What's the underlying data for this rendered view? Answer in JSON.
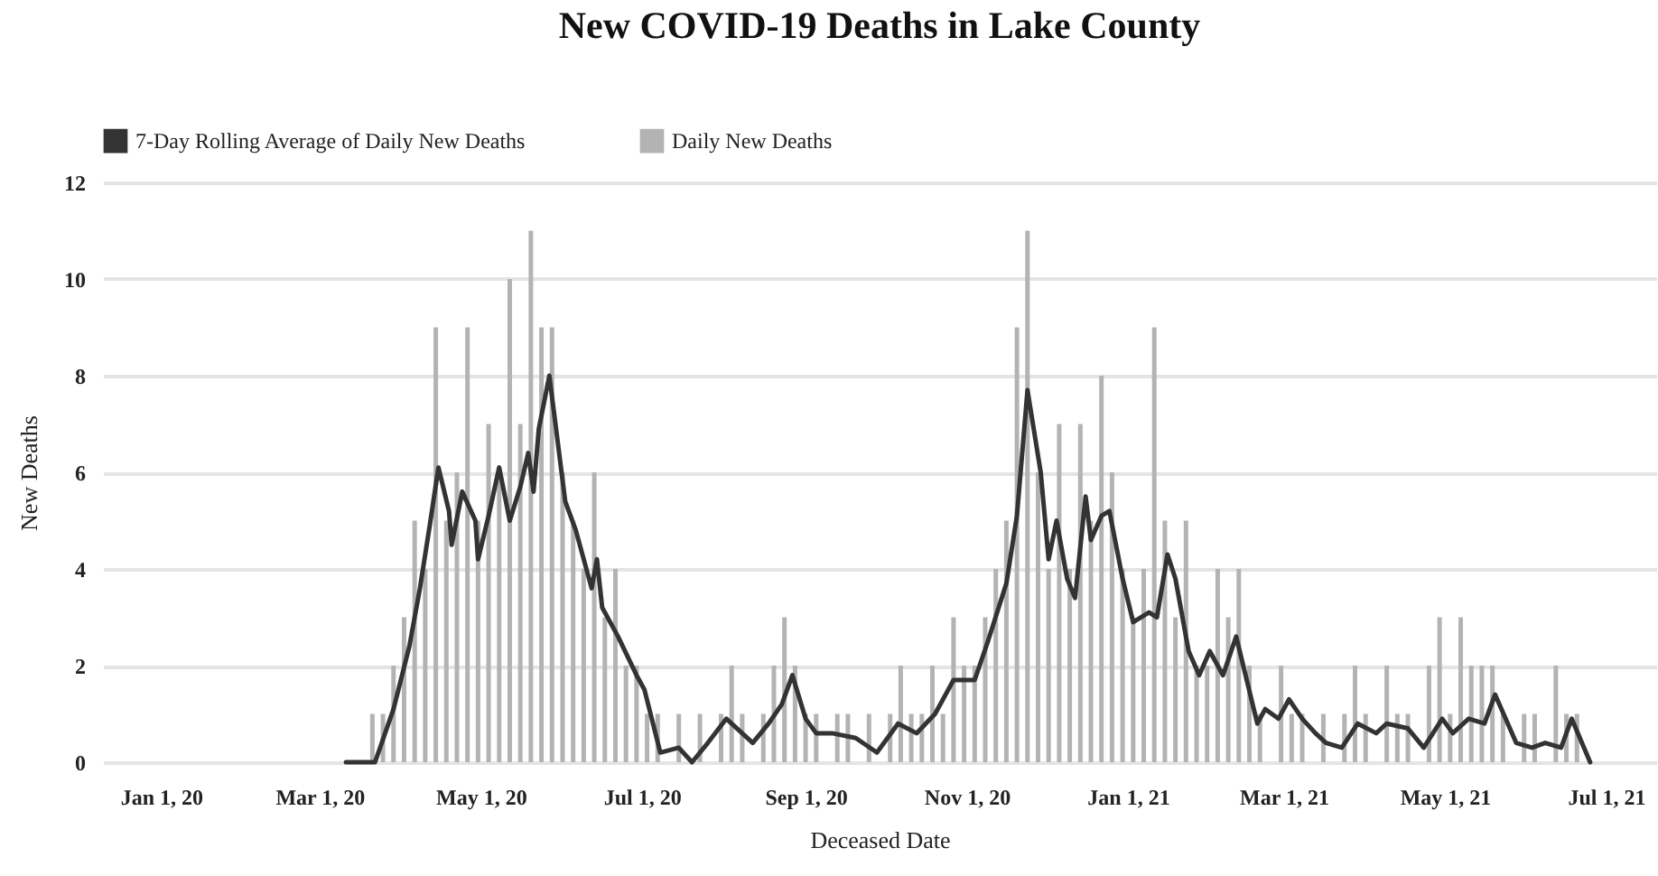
{
  "chart_data": {
    "type": "bar",
    "title": "New COVID-19 Deaths in Lake County",
    "xlabel": "Deceased Date",
    "ylabel": "New Deaths",
    "xlim": [
      "2019-12-10",
      "2021-07-20"
    ],
    "xticks": [
      {
        "value": "2020-01-01",
        "label": "Jan 1, 20"
      },
      {
        "value": "2020-03-01",
        "label": "Mar 1, 20"
      },
      {
        "value": "2020-05-01",
        "label": "May 1, 20"
      },
      {
        "value": "2020-07-01",
        "label": "Jul 1, 20"
      },
      {
        "value": "2020-09-01",
        "label": "Sep 1, 20"
      },
      {
        "value": "2020-11-01",
        "label": "Nov 1, 20"
      },
      {
        "value": "2021-01-01",
        "label": "Jan 1, 21"
      },
      {
        "value": "2021-03-01",
        "label": "Mar 1, 21"
      },
      {
        "value": "2021-05-01",
        "label": "May 1, 21"
      },
      {
        "value": "2021-07-01",
        "label": "Jul 1, 21"
      }
    ],
    "ylim": [
      0,
      12
    ],
    "yticks": [
      0,
      2,
      4,
      6,
      8,
      10,
      12
    ],
    "grid": "y",
    "legend": "top",
    "series": [
      {
        "name": "7-Day Rolling Average of Daily New Deaths",
        "type": "line",
        "color": "#333333",
        "x": [
          "2020-03-11",
          "2020-03-22",
          "2020-03-29",
          "2020-04-04",
          "2020-04-08",
          "2020-04-12",
          "2020-04-15",
          "2020-04-19",
          "2020-04-20",
          "2020-04-24",
          "2020-04-29",
          "2020-04-30",
          "2020-05-04",
          "2020-05-08",
          "2020-05-12",
          "2020-05-16",
          "2020-05-19",
          "2020-05-21",
          "2020-05-23",
          "2020-05-27",
          "2020-06-02",
          "2020-06-06",
          "2020-06-12",
          "2020-06-14",
          "2020-06-16",
          "2020-06-22",
          "2020-06-29",
          "2020-07-02",
          "2020-07-08",
          "2020-07-15",
          "2020-07-20",
          "2020-07-26",
          "2020-08-02",
          "2020-08-06",
          "2020-08-12",
          "2020-08-18",
          "2020-08-23",
          "2020-08-27",
          "2020-09-01",
          "2020-09-05",
          "2020-09-11",
          "2020-09-20",
          "2020-09-28",
          "2020-10-06",
          "2020-10-13",
          "2020-10-20",
          "2020-10-27",
          "2020-11-04",
          "2020-11-09",
          "2020-11-16",
          "2020-11-20",
          "2020-11-24",
          "2020-11-29",
          "2020-12-02",
          "2020-12-05",
          "2020-12-09",
          "2020-12-12",
          "2020-12-16",
          "2020-12-18",
          "2020-12-22",
          "2020-12-25",
          "2020-12-30",
          "2021-01-03",
          "2021-01-09",
          "2021-01-12",
          "2021-01-16",
          "2021-01-19",
          "2021-01-24",
          "2021-01-28",
          "2021-02-01",
          "2021-02-06",
          "2021-02-11",
          "2021-02-15",
          "2021-02-19",
          "2021-02-22",
          "2021-02-27",
          "2021-03-03",
          "2021-03-08",
          "2021-03-13",
          "2021-03-17",
          "2021-03-23",
          "2021-03-29",
          "2021-04-05",
          "2021-04-09",
          "2021-04-17",
          "2021-04-23",
          "2021-04-30",
          "2021-05-04",
          "2021-05-10",
          "2021-05-16",
          "2021-05-20",
          "2021-05-28",
          "2021-06-03",
          "2021-06-08",
          "2021-06-14",
          "2021-06-18",
          "2021-06-25"
        ],
        "values": [
          0,
          0,
          1.1,
          2.4,
          3.6,
          5.0,
          6.1,
          5.2,
          4.5,
          5.6,
          5.0,
          4.2,
          5.1,
          6.1,
          5.0,
          5.7,
          6.4,
          5.6,
          6.9,
          8.0,
          5.4,
          4.8,
          3.6,
          4.2,
          3.2,
          2.6,
          1.8,
          1.5,
          0.2,
          0.3,
          0,
          0.4,
          0.9,
          0.7,
          0.4,
          0.8,
          1.2,
          1.8,
          0.9,
          0.6,
          0.6,
          0.5,
          0.2,
          0.8,
          0.6,
          1.0,
          1.7,
          1.7,
          2.5,
          3.7,
          5.1,
          7.7,
          6.0,
          4.2,
          5.0,
          3.8,
          3.4,
          5.5,
          4.6,
          5.1,
          5.2,
          3.8,
          2.9,
          3.1,
          3.0,
          4.3,
          3.8,
          2.3,
          1.8,
          2.3,
          1.8,
          2.6,
          1.7,
          0.8,
          1.1,
          0.9,
          1.3,
          0.9,
          0.6,
          0.4,
          0.3,
          0.8,
          0.6,
          0.8,
          0.7,
          0.3,
          0.9,
          0.6,
          0.9,
          0.8,
          1.4,
          0.4,
          0.3,
          0.4,
          0.3,
          0.9,
          0
        ]
      },
      {
        "name": "Daily New Deaths",
        "color": "#b3b3b3",
        "x": [
          "2020-03-17",
          "2020-03-21",
          "2020-03-25",
          "2020-03-29",
          "2020-04-02",
          "2020-04-06",
          "2020-04-10",
          "2020-04-14",
          "2020-04-18",
          "2020-04-22",
          "2020-04-26",
          "2020-04-30",
          "2020-05-04",
          "2020-05-08",
          "2020-05-12",
          "2020-05-16",
          "2020-05-20",
          "2020-05-24",
          "2020-05-28",
          "2020-06-01",
          "2020-06-05",
          "2020-06-09",
          "2020-06-13",
          "2020-06-17",
          "2020-06-21",
          "2020-06-25",
          "2020-06-29",
          "2020-07-03",
          "2020-07-07",
          "2020-07-11",
          "2020-07-15",
          "2020-07-19",
          "2020-07-23",
          "2020-07-27",
          "2020-07-31",
          "2020-08-04",
          "2020-08-08",
          "2020-08-12",
          "2020-08-16",
          "2020-08-20",
          "2020-08-24",
          "2020-08-28",
          "2020-09-01",
          "2020-09-05",
          "2020-09-09",
          "2020-09-13",
          "2020-09-17",
          "2020-09-21",
          "2020-09-25",
          "2020-09-29",
          "2020-10-03",
          "2020-10-07",
          "2020-10-11",
          "2020-10-15",
          "2020-10-19",
          "2020-10-23",
          "2020-10-27",
          "2020-10-31",
          "2020-11-04",
          "2020-11-08",
          "2020-11-12",
          "2020-11-16",
          "2020-11-20",
          "2020-11-24",
          "2020-11-28",
          "2020-12-02",
          "2020-12-06",
          "2020-12-10",
          "2020-12-14",
          "2020-12-18",
          "2020-12-22",
          "2020-12-26",
          "2020-12-30",
          "2021-01-03",
          "2021-01-07",
          "2021-01-11",
          "2021-01-15",
          "2021-01-19",
          "2021-01-23",
          "2021-01-27",
          "2021-01-31",
          "2021-02-04",
          "2021-02-08",
          "2021-02-12",
          "2021-02-16",
          "2021-02-20",
          "2021-02-24",
          "2021-02-28",
          "2021-03-04",
          "2021-03-08",
          "2021-03-12",
          "2021-03-16",
          "2021-03-20",
          "2021-03-24",
          "2021-03-28",
          "2021-04-01",
          "2021-04-05",
          "2021-04-09",
          "2021-04-13",
          "2021-04-17",
          "2021-04-21",
          "2021-04-25",
          "2021-04-29",
          "2021-05-03",
          "2021-05-07",
          "2021-05-11",
          "2021-05-15",
          "2021-05-19",
          "2021-05-23",
          "2021-05-27",
          "2021-05-31",
          "2021-06-04",
          "2021-06-08",
          "2021-06-12",
          "2021-06-16",
          "2021-06-20",
          "2021-06-24"
        ],
        "values": [
          0,
          1,
          1,
          2,
          3,
          5,
          4,
          9,
          5,
          6,
          9,
          5,
          7,
          6,
          10,
          7,
          11,
          9,
          9,
          6,
          5,
          4,
          6,
          3,
          4,
          2,
          2,
          1,
          1,
          0,
          1,
          0,
          1,
          0,
          1,
          2,
          1,
          0,
          1,
          2,
          3,
          2,
          1,
          1,
          0,
          1,
          1,
          0,
          1,
          0,
          1,
          2,
          1,
          1,
          2,
          1,
          3,
          2,
          2,
          3,
          4,
          5,
          9,
          11,
          6,
          4,
          7,
          4,
          7,
          5,
          8,
          6,
          4,
          3,
          4,
          9,
          5,
          3,
          5,
          2,
          2,
          4,
          3,
          4,
          2,
          1,
          0,
          2,
          1,
          1,
          0,
          1,
          0,
          1,
          2,
          1,
          0,
          2,
          1,
          1,
          0,
          2,
          3,
          1,
          3,
          2,
          2,
          2,
          1,
          0,
          1,
          1,
          0,
          2,
          1,
          1,
          0
        ]
      }
    ]
  }
}
